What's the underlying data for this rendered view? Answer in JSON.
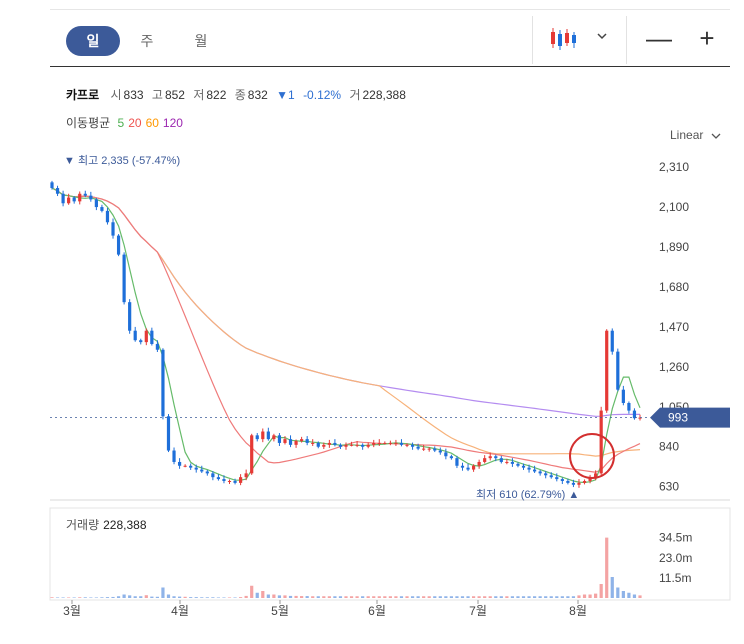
{
  "tabs": [
    {
      "label": "일",
      "active": true
    },
    {
      "label": "주",
      "active": false
    },
    {
      "label": "월",
      "active": false
    }
  ],
  "toolbar": {
    "chart_type_icon": "candlestick-icon",
    "dropdown_icon": "chevron-down-icon",
    "zoom_out": "—",
    "zoom_in": "+"
  },
  "stock": {
    "name": "카프로",
    "open_label": "시",
    "open": "833",
    "high_label": "고",
    "high": "852",
    "low_label": "저",
    "low": "822",
    "close_label": "종",
    "close": "832",
    "change": "▼1",
    "change_pct": "-0.12%",
    "volume_label": "거",
    "volume": "228,388"
  },
  "moving_average": {
    "label": "이동평균",
    "periods": [
      {
        "value": "5",
        "color": "#4caf50"
      },
      {
        "value": "20",
        "color": "#ef5350"
      },
      {
        "value": "60",
        "color": "#ff9800"
      },
      {
        "value": "120",
        "color": "#9c27b0"
      }
    ]
  },
  "scale_selector": {
    "label": "Linear"
  },
  "annotations": {
    "high": "▼ 최고 2,335 (-57.47%)",
    "low": "최저 610 (62.79%) ▲",
    "current_price": "993"
  },
  "volume_panel": {
    "label": "거래량",
    "value": "228,388"
  },
  "colors": {
    "up": "#e53935",
    "down": "#1e6fd9",
    "ma5": "#66bb6a",
    "ma20": "#ef7b7b",
    "ma60": "#f7b27a",
    "ma120": "#b48cf0",
    "current_tag": "#3c5a99",
    "circle": "#d32f2f"
  },
  "chart_data": {
    "type": "candlestick",
    "x_ticks": [
      "3월",
      "4월",
      "5월",
      "6월",
      "7월",
      "8월"
    ],
    "y_ticks": [
      2310,
      2100,
      1890,
      1680,
      1470,
      1260,
      1050,
      840,
      630
    ],
    "y_tick_labels": [
      "2,310",
      "2,100",
      "1,890",
      "1,680",
      "1,470",
      "1,260",
      "1,050",
      "840",
      "630"
    ],
    "ylim": [
      560,
      2400
    ],
    "volume_ticks": [
      "34.5m",
      "23.0m",
      "11.5m"
    ],
    "volume_tick_values": [
      34.5,
      23.0,
      11.5
    ],
    "closes": [
      2200,
      2170,
      2120,
      2150,
      2130,
      2170,
      2160,
      2140,
      2100,
      2080,
      2020,
      1950,
      1850,
      1600,
      1450,
      1400,
      1390,
      1450,
      1380,
      1350,
      1000,
      820,
      760,
      740,
      740,
      730,
      720,
      710,
      700,
      680,
      670,
      660,
      660,
      650,
      680,
      700,
      900,
      880,
      920,
      880,
      900,
      860,
      880,
      850,
      870,
      880,
      860,
      860,
      840,
      850,
      860,
      850,
      840,
      850,
      850,
      850,
      840,
      850,
      860,
      860,
      860,
      860,
      860,
      850,
      850,
      840,
      830,
      830,
      830,
      820,
      810,
      790,
      780,
      740,
      730,
      720,
      740,
      760,
      780,
      790,
      780,
      760,
      760,
      750,
      740,
      730,
      720,
      710,
      700,
      690,
      680,
      670,
      660,
      650,
      640,
      650,
      660,
      680,
      700,
      1030,
      1450,
      1340,
      1140,
      1070,
      1030,
      990,
      993
    ],
    "volume_levels_m": [
      0.4,
      0.3,
      0.3,
      0.3,
      0.3,
      0.4,
      0.4,
      0.3,
      0.3,
      0.4,
      0.5,
      0.6,
      1,
      2,
      1.5,
      1,
      1,
      1.6,
      0.8,
      0.7,
      6,
      2,
      1,
      0.8,
      0.7,
      0.5,
      0.5,
      0.4,
      0.4,
      0.4,
      0.3,
      0.3,
      0.3,
      0.3,
      0.5,
      1.2,
      7,
      3,
      4,
      2,
      2,
      1.5,
      1.5,
      1.2,
      1.2,
      1.1,
      1.1,
      1,
      1,
      1,
      1,
      1,
      1,
      1,
      1,
      1,
      1,
      1,
      1,
      1,
      1,
      1,
      1,
      1,
      1,
      1,
      1,
      1,
      1,
      1,
      1,
      1,
      1,
      1,
      1,
      1,
      1,
      1,
      1,
      1,
      1,
      1,
      1,
      1,
      1,
      1,
      1,
      1,
      1,
      1,
      1,
      1,
      1,
      1,
      1,
      1.5,
      2,
      2,
      2.5,
      8,
      34.5,
      12,
      6,
      4,
      3,
      2,
      1.5
    ]
  }
}
